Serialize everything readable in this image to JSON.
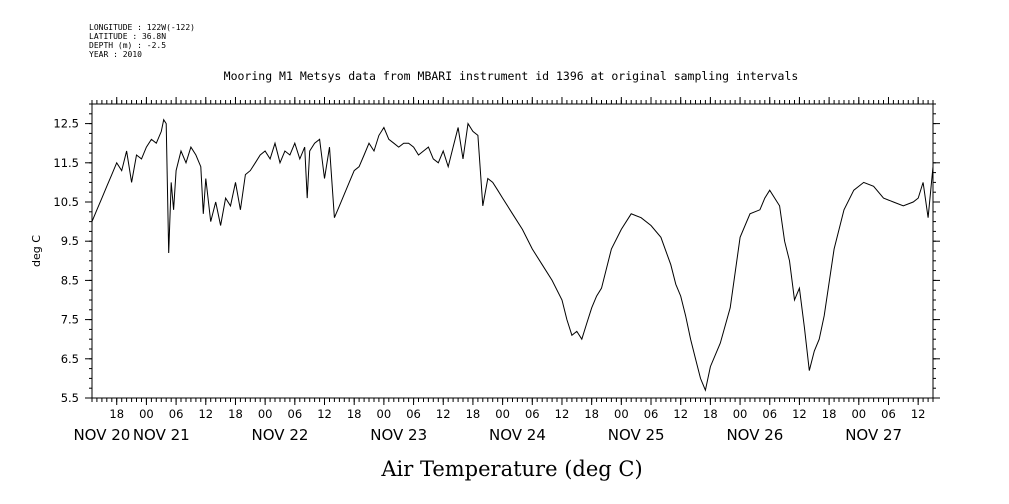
{
  "header": {
    "longitude": "LONGITUDE : 122W(-122)",
    "latitude": "LATITUDE : 36.8N",
    "depth": "DEPTH (m) : -2.5",
    "year": "YEAR : 2010"
  },
  "chart_data": {
    "type": "line",
    "title": "Mooring M1 Metsys data from MBARI instrument id 1396 at original sampling intervals",
    "xlabel": "Air Temperature (deg C)",
    "ylabel": "deg C",
    "xlim": [
      "2010-11-20 13:00",
      "2010-11-27 15:00"
    ],
    "ylim": [
      5.5,
      13.0
    ],
    "y_ticks": [
      "5.5",
      "6.5",
      "7.5",
      "8.5",
      "9.5",
      "10.5",
      "11.5",
      "12.5"
    ],
    "hour_ticks": [
      {
        "t": "2010-11-20 18:00",
        "label": "18"
      },
      {
        "t": "2010-11-21 00:00",
        "label": "00"
      },
      {
        "t": "2010-11-21 06:00",
        "label": "06"
      },
      {
        "t": "2010-11-21 12:00",
        "label": "12"
      },
      {
        "t": "2010-11-21 18:00",
        "label": "18"
      },
      {
        "t": "2010-11-22 00:00",
        "label": "00"
      },
      {
        "t": "2010-11-22 06:00",
        "label": "06"
      },
      {
        "t": "2010-11-22 12:00",
        "label": "12"
      },
      {
        "t": "2010-11-22 18:00",
        "label": "18"
      },
      {
        "t": "2010-11-23 00:00",
        "label": "00"
      },
      {
        "t": "2010-11-23 06:00",
        "label": "06"
      },
      {
        "t": "2010-11-23 12:00",
        "label": "12"
      },
      {
        "t": "2010-11-23 18:00",
        "label": "18"
      },
      {
        "t": "2010-11-24 00:00",
        "label": "00"
      },
      {
        "t": "2010-11-24 06:00",
        "label": "06"
      },
      {
        "t": "2010-11-24 12:00",
        "label": "12"
      },
      {
        "t": "2010-11-24 18:00",
        "label": "18"
      },
      {
        "t": "2010-11-25 00:00",
        "label": "00"
      },
      {
        "t": "2010-11-25 06:00",
        "label": "06"
      },
      {
        "t": "2010-11-25 12:00",
        "label": "12"
      },
      {
        "t": "2010-11-25 18:00",
        "label": "18"
      },
      {
        "t": "2010-11-26 00:00",
        "label": "00"
      },
      {
        "t": "2010-11-26 06:00",
        "label": "06"
      },
      {
        "t": "2010-11-26 12:00",
        "label": "12"
      },
      {
        "t": "2010-11-26 18:00",
        "label": "18"
      },
      {
        "t": "2010-11-27 00:00",
        "label": "00"
      },
      {
        "t": "2010-11-27 06:00",
        "label": "06"
      },
      {
        "t": "2010-11-27 12:00",
        "label": "12"
      }
    ],
    "day_labels": [
      {
        "t": "2010-11-20 15:00",
        "label": "NOV 20"
      },
      {
        "t": "2010-11-21 03:00",
        "label": "NOV 21"
      },
      {
        "t": "2010-11-22 03:00",
        "label": "NOV 22"
      },
      {
        "t": "2010-11-23 03:00",
        "label": "NOV 23"
      },
      {
        "t": "2010-11-24 03:00",
        "label": "NOV 24"
      },
      {
        "t": "2010-11-25 03:00",
        "label": "NOV 25"
      },
      {
        "t": "2010-11-26 03:00",
        "label": "NOV 26"
      },
      {
        "t": "2010-11-27 03:00",
        "label": "NOV 27"
      }
    ],
    "grid": false,
    "series": [
      {
        "x": [
          "2010-11-20 13:00",
          "2010-11-20 14:00",
          "2010-11-20 15:00",
          "2010-11-20 16:00",
          "2010-11-20 17:00",
          "2010-11-20 18:00",
          "2010-11-20 19:00",
          "2010-11-20 20:00",
          "2010-11-20 21:00",
          "2010-11-20 22:00",
          "2010-11-20 23:00",
          "2010-11-21 00:00",
          "2010-11-21 01:00",
          "2010-11-21 02:00",
          "2010-11-21 03:00",
          "2010-11-21 03:30",
          "2010-11-21 04:00",
          "2010-11-21 04:30",
          "2010-11-21 05:00",
          "2010-11-21 05:30",
          "2010-11-21 06:00",
          "2010-11-21 07:00",
          "2010-11-21 08:00",
          "2010-11-21 09:00",
          "2010-11-21 10:00",
          "2010-11-21 11:00",
          "2010-11-21 11:30",
          "2010-11-21 12:00",
          "2010-11-21 13:00",
          "2010-11-21 14:00",
          "2010-11-21 15:00",
          "2010-11-21 16:00",
          "2010-11-21 17:00",
          "2010-11-21 18:00",
          "2010-11-21 19:00",
          "2010-11-21 20:00",
          "2010-11-21 21:00",
          "2010-11-21 22:00",
          "2010-11-21 23:00",
          "2010-11-22 00:00",
          "2010-11-22 01:00",
          "2010-11-22 02:00",
          "2010-11-22 03:00",
          "2010-11-22 04:00",
          "2010-11-22 05:00",
          "2010-11-22 06:00",
          "2010-11-22 07:00",
          "2010-11-22 08:00",
          "2010-11-22 08:30",
          "2010-11-22 09:00",
          "2010-11-22 10:00",
          "2010-11-22 11:00",
          "2010-11-22 12:00",
          "2010-11-22 13:00",
          "2010-11-22 14:00",
          "2010-11-22 15:00",
          "2010-11-22 16:00",
          "2010-11-22 17:00",
          "2010-11-22 18:00",
          "2010-11-22 19:00",
          "2010-11-22 20:00",
          "2010-11-22 21:00",
          "2010-11-22 22:00",
          "2010-11-22 23:00",
          "2010-11-23 00:00",
          "2010-11-23 01:00",
          "2010-11-23 02:00",
          "2010-11-23 03:00",
          "2010-11-23 04:00",
          "2010-11-23 05:00",
          "2010-11-23 06:00",
          "2010-11-23 07:00",
          "2010-11-23 08:00",
          "2010-11-23 09:00",
          "2010-11-23 10:00",
          "2010-11-23 11:00",
          "2010-11-23 12:00",
          "2010-11-23 13:00",
          "2010-11-23 14:00",
          "2010-11-23 15:00",
          "2010-11-23 16:00",
          "2010-11-23 17:00",
          "2010-11-23 18:00",
          "2010-11-23 19:00",
          "2010-11-23 20:00",
          "2010-11-23 21:00",
          "2010-11-23 22:00",
          "2010-11-23 23:00",
          "2010-11-24 00:00",
          "2010-11-24 02:00",
          "2010-11-24 04:00",
          "2010-11-24 06:00",
          "2010-11-24 08:00",
          "2010-11-24 10:00",
          "2010-11-24 12:00",
          "2010-11-24 13:00",
          "2010-11-24 14:00",
          "2010-11-24 15:00",
          "2010-11-24 16:00",
          "2010-11-24 17:00",
          "2010-11-24 18:00",
          "2010-11-24 19:00",
          "2010-11-24 20:00",
          "2010-11-24 22:00",
          "2010-11-25 00:00",
          "2010-11-25 02:00",
          "2010-11-25 04:00",
          "2010-11-25 06:00",
          "2010-11-25 08:00",
          "2010-11-25 10:00",
          "2010-11-25 11:00",
          "2010-11-25 12:00",
          "2010-11-25 13:00",
          "2010-11-25 14:00",
          "2010-11-25 15:00",
          "2010-11-25 16:00",
          "2010-11-25 17:00",
          "2010-11-25 18:00",
          "2010-11-25 20:00",
          "2010-11-25 22:00",
          "2010-11-26 00:00",
          "2010-11-26 02:00",
          "2010-11-26 04:00",
          "2010-11-26 05:00",
          "2010-11-26 06:00",
          "2010-11-26 08:00",
          "2010-11-26 09:00",
          "2010-11-26 10:00",
          "2010-11-26 11:00",
          "2010-11-26 12:00",
          "2010-11-26 13:00",
          "2010-11-26 14:00",
          "2010-11-26 15:00",
          "2010-11-26 16:00",
          "2010-11-26 17:00",
          "2010-11-26 19:00",
          "2010-11-26 21:00",
          "2010-11-26 23:00",
          "2010-11-27 01:00",
          "2010-11-27 03:00",
          "2010-11-27 05:00",
          "2010-11-27 07:00",
          "2010-11-27 09:00",
          "2010-11-27 11:00",
          "2010-11-27 12:00",
          "2010-11-27 13:00",
          "2010-11-27 14:00",
          "2010-11-27 15:00"
        ],
        "y": [
          10.0,
          10.3,
          10.6,
          10.9,
          11.2,
          11.5,
          11.3,
          11.8,
          11.0,
          11.7,
          11.6,
          11.9,
          12.1,
          12.0,
          12.3,
          12.6,
          12.5,
          9.2,
          11.0,
          10.3,
          11.3,
          11.8,
          11.5,
          11.9,
          11.7,
          11.4,
          10.2,
          11.1,
          10.0,
          10.5,
          9.9,
          10.6,
          10.4,
          11.0,
          10.3,
          11.2,
          11.3,
          11.5,
          11.7,
          11.8,
          11.6,
          12.0,
          11.5,
          11.8,
          11.7,
          12.0,
          11.6,
          11.9,
          10.6,
          11.8,
          12.0,
          12.1,
          11.1,
          11.9,
          10.1,
          10.4,
          10.7,
          11.0,
          11.3,
          11.4,
          11.7,
          12.0,
          11.8,
          12.2,
          12.4,
          12.1,
          12.0,
          11.9,
          12.0,
          12.0,
          11.9,
          11.7,
          11.8,
          11.9,
          11.6,
          11.5,
          11.8,
          11.4,
          11.9,
          12.4,
          11.6,
          12.5,
          12.3,
          12.2,
          10.4,
          11.1,
          11.0,
          10.8,
          10.6,
          10.2,
          9.8,
          9.3,
          8.9,
          8.5,
          8.0,
          7.5,
          7.1,
          7.2,
          7.0,
          7.4,
          7.8,
          8.1,
          8.3,
          9.3,
          9.8,
          10.2,
          10.1,
          9.9,
          9.6,
          8.9,
          8.4,
          8.1,
          7.6,
          7.0,
          6.5,
          6.0,
          5.7,
          6.3,
          6.9,
          7.8,
          9.6,
          10.2,
          10.3,
          10.6,
          10.8,
          10.4,
          9.5,
          9.0,
          8.0,
          8.3,
          7.3,
          6.2,
          6.7,
          7.0,
          7.6,
          9.3,
          10.3,
          10.8,
          11.0,
          10.9,
          10.6,
          10.5,
          10.4,
          10.5,
          10.6,
          11.0,
          10.1,
          11.4
        ]
      }
    ]
  }
}
